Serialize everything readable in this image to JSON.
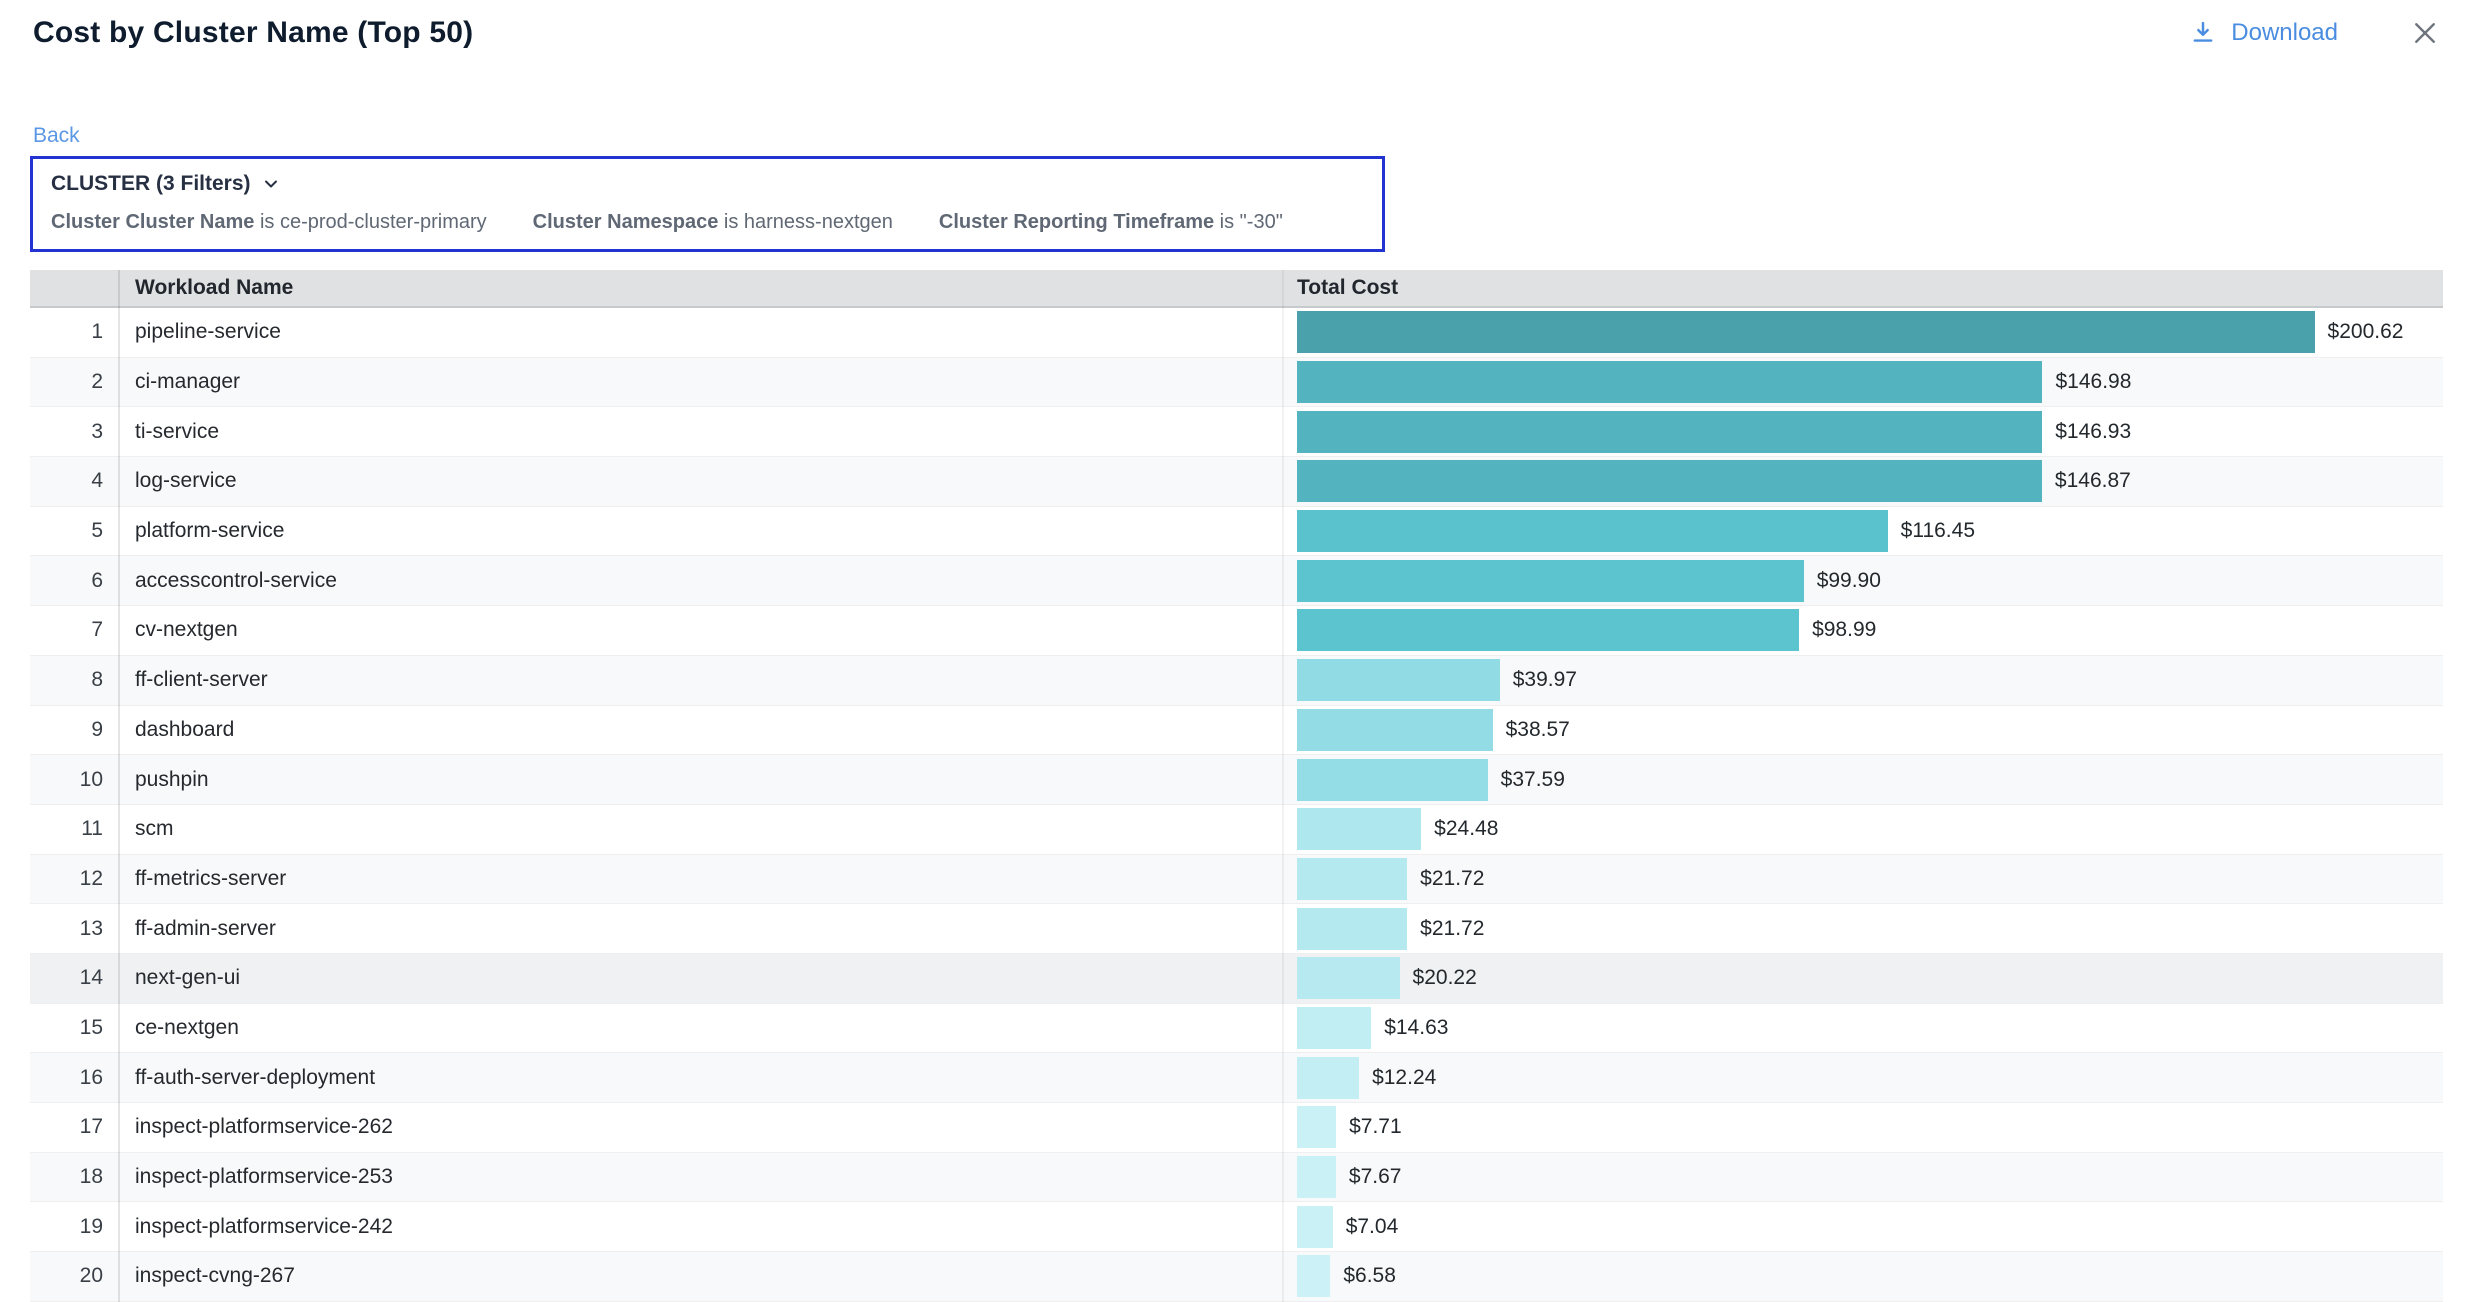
{
  "header": {
    "title": "Cost by Cluster Name (Top 50)",
    "download_label": "Download"
  },
  "back_label": "Back",
  "filter_panel": {
    "summary": "CLUSTER (3 Filters)",
    "filters": [
      {
        "field": "Cluster Cluster Name",
        "condition": "is ce-prod-cluster-primary"
      },
      {
        "field": "Cluster Namespace",
        "condition": "is harness-nextgen"
      },
      {
        "field": "Cluster Reporting Timeframe",
        "condition": "is \"-30\""
      }
    ]
  },
  "table": {
    "columns": {
      "workload": "Workload Name",
      "cost": "Total Cost"
    },
    "axis_max": 222,
    "rows": [
      {
        "rank": 1,
        "workload": "pipeline-service",
        "cost": 200.62,
        "cost_label": "$200.62",
        "bar_color": "#4ba1ab",
        "highlighted": false
      },
      {
        "rank": 2,
        "workload": "ci-manager",
        "cost": 146.98,
        "cost_label": "$146.98",
        "bar_color": "#53b3be",
        "highlighted": false
      },
      {
        "rank": 3,
        "workload": "ti-service",
        "cost": 146.93,
        "cost_label": "$146.93",
        "bar_color": "#53b3be",
        "highlighted": false
      },
      {
        "rank": 4,
        "workload": "log-service",
        "cost": 146.87,
        "cost_label": "$146.87",
        "bar_color": "#53b4bf",
        "highlighted": false
      },
      {
        "rank": 5,
        "workload": "platform-service",
        "cost": 116.45,
        "cost_label": "$116.45",
        "bar_color": "#5ac2cd",
        "highlighted": false
      },
      {
        "rank": 6,
        "workload": "accesscontrol-service",
        "cost": 99.9,
        "cost_label": "$99.90",
        "bar_color": "#5cc4ce",
        "highlighted": false
      },
      {
        "rank": 7,
        "workload": "cv-nextgen",
        "cost": 98.99,
        "cost_label": "$98.99",
        "bar_color": "#5cc4ce",
        "highlighted": false
      },
      {
        "rank": 8,
        "workload": "ff-client-server",
        "cost": 39.97,
        "cost_label": "$39.97",
        "bar_color": "#90dbe4",
        "highlighted": false
      },
      {
        "rank": 9,
        "workload": "dashboard",
        "cost": 38.57,
        "cost_label": "$38.57",
        "bar_color": "#93dce5",
        "highlighted": false
      },
      {
        "rank": 10,
        "workload": "pushpin",
        "cost": 37.59,
        "cost_label": "$37.59",
        "bar_color": "#95dde6",
        "highlighted": false
      },
      {
        "rank": 11,
        "workload": "scm",
        "cost": 24.48,
        "cost_label": "$24.48",
        "bar_color": "#aee7ee",
        "highlighted": false
      },
      {
        "rank": 12,
        "workload": "ff-metrics-server",
        "cost": 21.72,
        "cost_label": "$21.72",
        "bar_color": "#b4e9ef",
        "highlighted": false
      },
      {
        "rank": 13,
        "workload": "ff-admin-server",
        "cost": 21.72,
        "cost_label": "$21.72",
        "bar_color": "#b4e9ef",
        "highlighted": false
      },
      {
        "rank": 14,
        "workload": "next-gen-ui",
        "cost": 20.22,
        "cost_label": "$20.22",
        "bar_color": "#b7eaf0",
        "highlighted": true
      },
      {
        "rank": 15,
        "workload": "ce-nextgen",
        "cost": 14.63,
        "cost_label": "$14.63",
        "bar_color": "#c0eef3",
        "highlighted": false
      },
      {
        "rank": 16,
        "workload": "ff-auth-server-deployment",
        "cost": 12.24,
        "cost_label": "$12.24",
        "bar_color": "#c3eff4",
        "highlighted": false
      },
      {
        "rank": 17,
        "workload": "inspect-platformservice-262",
        "cost": 7.71,
        "cost_label": "$7.71",
        "bar_color": "#c9f1f6",
        "highlighted": false
      },
      {
        "rank": 18,
        "workload": "inspect-platformservice-253",
        "cost": 7.67,
        "cost_label": "$7.67",
        "bar_color": "#c9f1f6",
        "highlighted": false
      },
      {
        "rank": 19,
        "workload": "inspect-platformservice-242",
        "cost": 7.04,
        "cost_label": "$7.04",
        "bar_color": "#caf2f6",
        "highlighted": false
      },
      {
        "rank": 20,
        "workload": "inspect-cvng-267",
        "cost": 6.58,
        "cost_label": "$6.58",
        "bar_color": "#ccf2f7",
        "highlighted": false
      }
    ]
  },
  "colors": {
    "accent_blue": "#4a8de0",
    "filter_border": "#2233d1",
    "header_bg": "#dfe1e3"
  },
  "chart_data": {
    "type": "bar",
    "title": "Cost by Cluster Name (Top 50)",
    "xlabel": "Total Cost",
    "ylabel": "Workload Name",
    "orientation": "horizontal",
    "xlim": [
      0,
      222
    ],
    "categories": [
      "pipeline-service",
      "ci-manager",
      "ti-service",
      "log-service",
      "platform-service",
      "accesscontrol-service",
      "cv-nextgen",
      "ff-client-server",
      "dashboard",
      "pushpin",
      "scm",
      "ff-metrics-server",
      "ff-admin-server",
      "next-gen-ui",
      "ce-nextgen",
      "ff-auth-server-deployment",
      "inspect-platformservice-262",
      "inspect-platformservice-253",
      "inspect-platformservice-242",
      "inspect-cvng-267"
    ],
    "values": [
      200.62,
      146.98,
      146.93,
      146.87,
      116.45,
      99.9,
      98.99,
      39.97,
      38.57,
      37.59,
      24.48,
      21.72,
      21.72,
      20.22,
      14.63,
      12.24,
      7.71,
      7.67,
      7.04,
      6.58
    ]
  }
}
